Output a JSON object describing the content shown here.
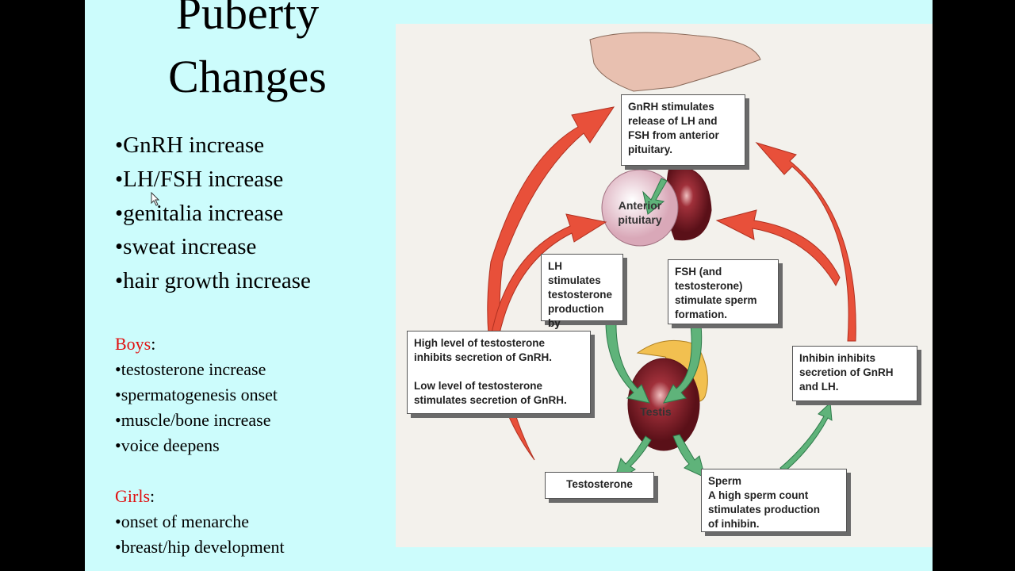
{
  "slide": {
    "title_line1": "Puberty",
    "title_line2": "Changes",
    "bullets": [
      "•GnRH increase",
      "•LH/FSH increase",
      "•genitalia increase",
      "•sweat increase",
      "•hair growth increase"
    ],
    "boys": {
      "heading": "Boys",
      "items": [
        "•testosterone increase",
        "•spermatogenesis onset",
        "•muscle/bone increase",
        "•voice deepens"
      ]
    },
    "girls": {
      "heading": "Girls",
      "items": [
        "•onset of menarche",
        "•breast/hip development"
      ]
    },
    "accent_color": "#e01010",
    "background_color": "#ccfcfc"
  },
  "diagram": {
    "gnrh_box": "GnRH stimulates\nrelease of LH and\nFSH from anterior\npituitary.",
    "anterior_pituitary": "Anterior\npituitary",
    "lh_box": "LH stimulates\ntestosterone\nproduction by\ntestis.",
    "fsh_box": "FSH (and\ntestosterone)\nstimulate sperm\nformation.",
    "testosterone_feedback_box": "High level of testosterone\ninhibits secretion of GnRH.\n\nLow level of testosterone\nstimulates secretion of GnRH.",
    "inhibin_box": "Inhibin inhibits\nsecretion of GnRH\nand LH.",
    "testis": "Testis",
    "testosterone_box": "Testosterone",
    "sperm_box": "Sperm\nA high sperm count\nstimulates production\nof inhibin.",
    "arrow_colors": {
      "feedback": "#e8503a",
      "stimulation": "#5fb37a"
    }
  }
}
